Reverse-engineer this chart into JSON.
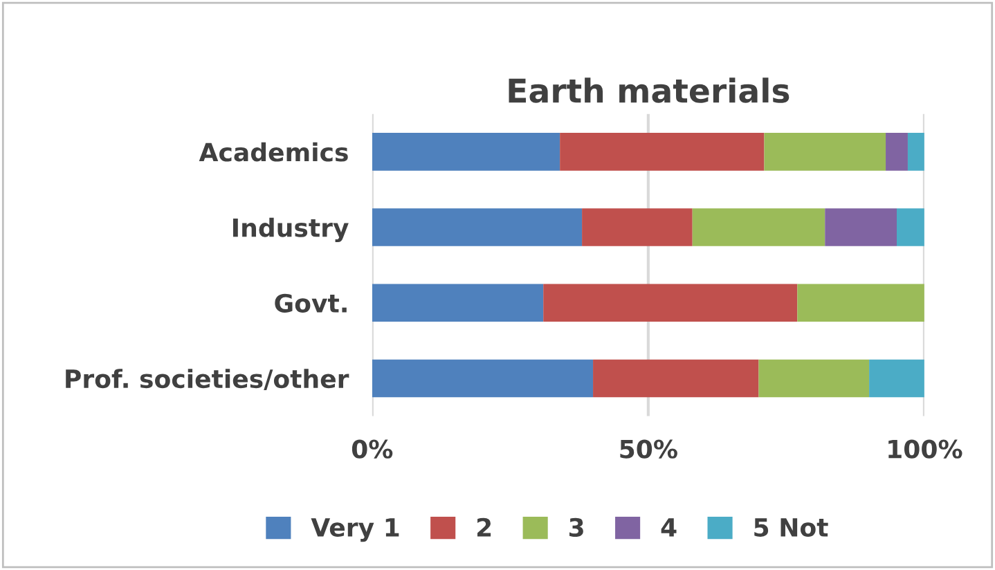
{
  "chart_data": {
    "type": "bar",
    "title": "Earth materials",
    "orientation": "horizontal",
    "stacked": true,
    "categories": [
      "Academics",
      "Industry",
      "Govt.",
      "Prof. societies/other"
    ],
    "series": [
      {
        "name": "Very 1",
        "color": "#4f81bd",
        "values": [
          34,
          38,
          31,
          40
        ]
      },
      {
        "name": "2",
        "color": "#c0504d",
        "values": [
          37,
          20,
          46,
          30
        ]
      },
      {
        "name": "3",
        "color": "#9bbb59",
        "values": [
          22,
          24,
          23,
          20
        ]
      },
      {
        "name": "4",
        "color": "#8064a2",
        "values": [
          4,
          13,
          0,
          0
        ]
      },
      {
        "name": "5 Not",
        "color": "#4bacc6",
        "values": [
          3,
          5,
          0,
          10
        ]
      }
    ],
    "xlim": [
      0,
      100
    ],
    "xticks": [
      {
        "value": 0,
        "label": "0%"
      },
      {
        "value": 50,
        "label": "50%"
      },
      {
        "value": 100,
        "label": "100%"
      }
    ],
    "grid": "x",
    "legend": "bottom"
  }
}
